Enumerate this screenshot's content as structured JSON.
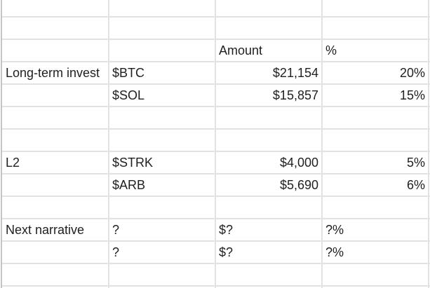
{
  "sheet": {
    "header": {
      "amount": "Amount",
      "percent": "%"
    },
    "rows": [
      {
        "category": "Long-term invest",
        "token": "$BTC",
        "amount": "$21,154",
        "percent": "20%"
      },
      {
        "category": "",
        "token": "$SOL",
        "amount": "$15,857",
        "percent": "15%"
      },
      {
        "category": "L2",
        "token": "$STRK",
        "amount": "$4,000",
        "percent": "5%"
      },
      {
        "category": "",
        "token": "$ARB",
        "amount": "$5,690",
        "percent": "6%"
      },
      {
        "category": "Next narrative",
        "token": "?",
        "amount": "$?",
        "percent": "?%"
      },
      {
        "category": "",
        "token": "?",
        "amount": "$?",
        "percent": "?%"
      }
    ]
  }
}
